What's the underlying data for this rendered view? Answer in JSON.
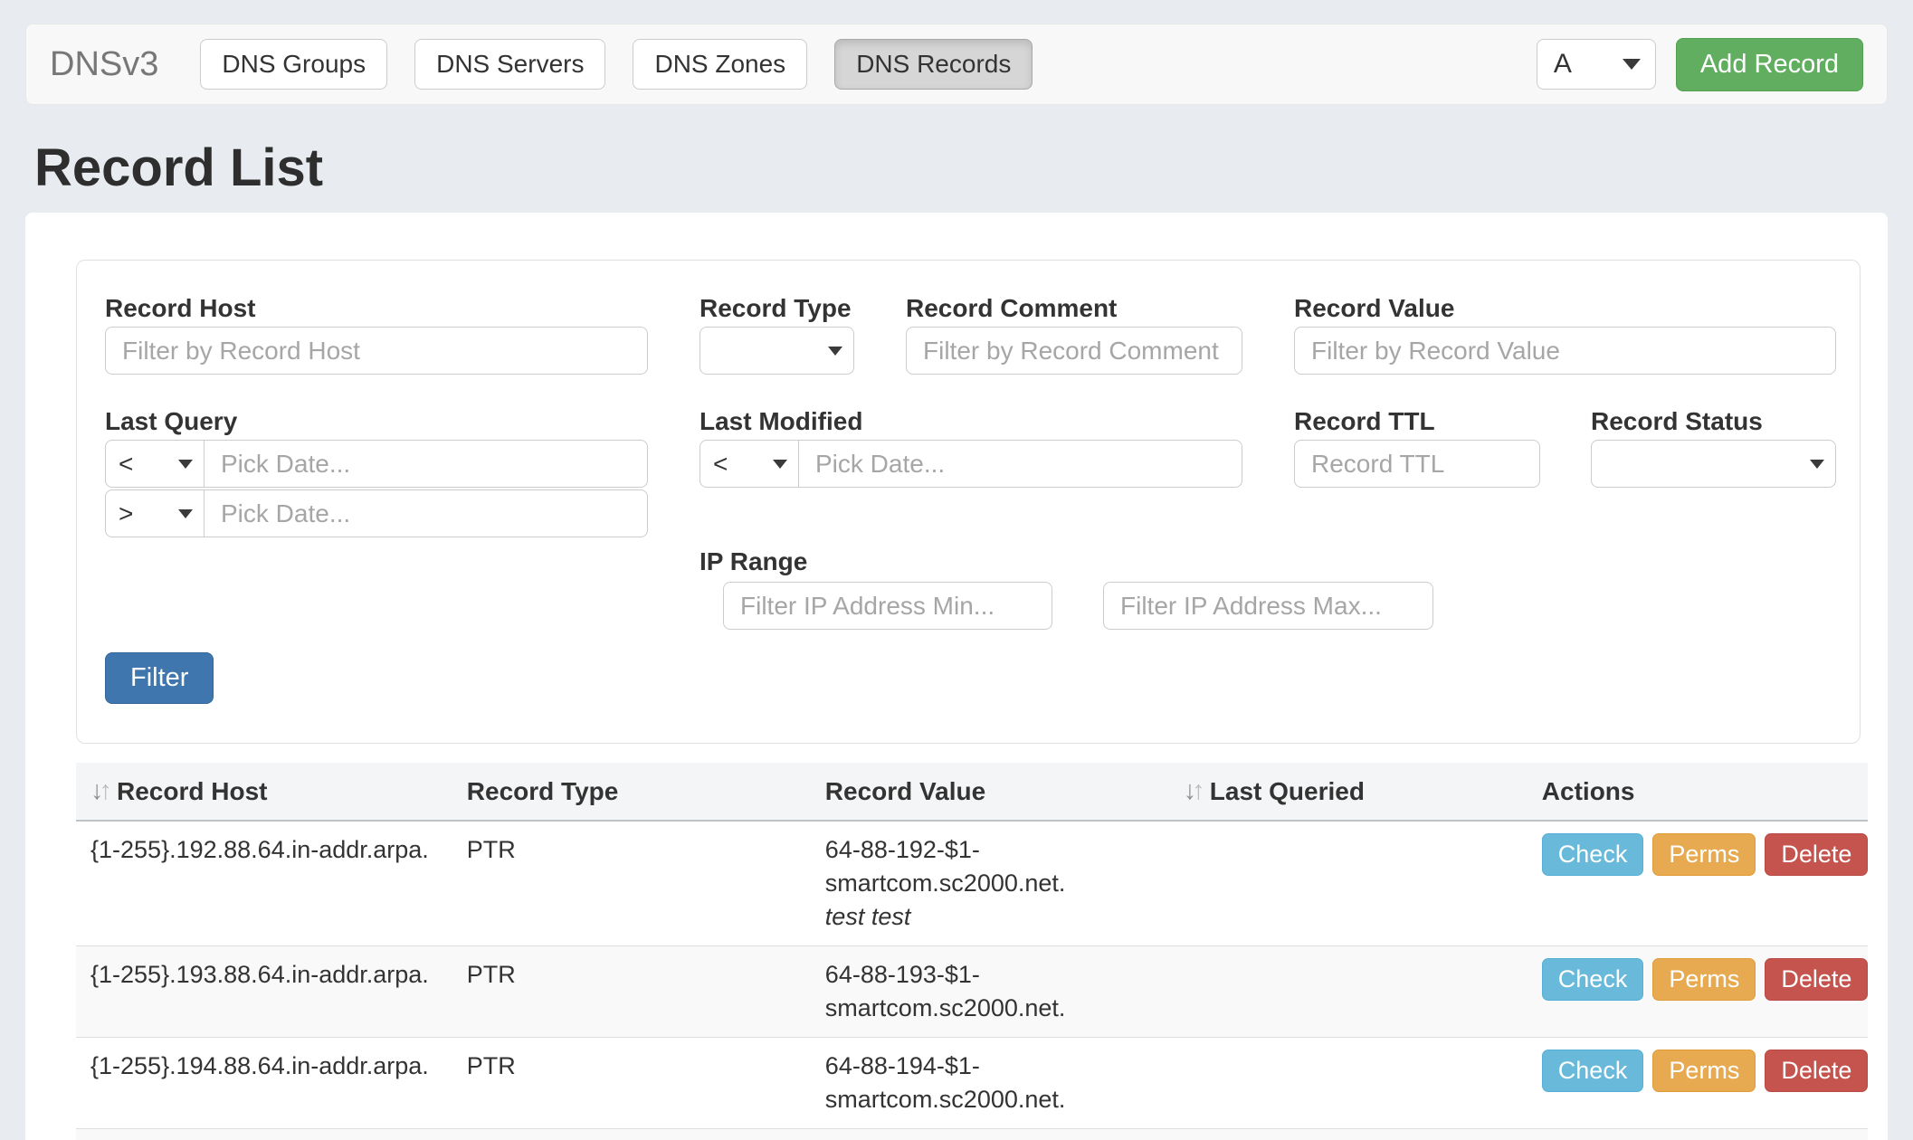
{
  "navbar": {
    "brand": "DNSv3",
    "items": [
      {
        "label": "DNS Groups",
        "active": false
      },
      {
        "label": "DNS Servers",
        "active": false
      },
      {
        "label": "DNS Zones",
        "active": false
      },
      {
        "label": "DNS Records",
        "active": true
      }
    ],
    "record_type_select_value": "A",
    "add_button_label": "Add Record"
  },
  "page": {
    "title": "Record List"
  },
  "filters": {
    "record_host": {
      "label": "Record Host",
      "placeholder": "Filter by Record Host",
      "value": ""
    },
    "record_type": {
      "label": "Record Type",
      "value": ""
    },
    "record_comment": {
      "label": "Record Comment",
      "placeholder": "Filter by Record Comment",
      "value": ""
    },
    "record_value": {
      "label": "Record Value",
      "placeholder": "Filter by Record Value",
      "value": ""
    },
    "last_query": {
      "label": "Last Query",
      "op_less": "<",
      "op_greater": ">",
      "date_placeholder": "Pick Date..."
    },
    "last_modified": {
      "label": "Last Modified",
      "op_less": "<",
      "date_placeholder": "Pick Date..."
    },
    "record_ttl": {
      "label": "Record TTL",
      "placeholder": "Record TTL",
      "value": ""
    },
    "record_status": {
      "label": "Record Status",
      "value": ""
    },
    "ip_range": {
      "label": "IP Range",
      "min_placeholder": "Filter IP Address Min...",
      "max_placeholder": "Filter IP Address Max..."
    },
    "submit_label": "Filter"
  },
  "table": {
    "headers": [
      {
        "label": "Record Host",
        "sortable": true
      },
      {
        "label": "Record Type",
        "sortable": false
      },
      {
        "label": "Record Value",
        "sortable": false
      },
      {
        "label": "Last Queried",
        "sortable": true
      },
      {
        "label": "Actions",
        "sortable": false
      }
    ],
    "action_labels": [
      "Check",
      "Perms",
      "Delete"
    ],
    "rows": [
      {
        "record_host": "{1-255}.192.88.64.in-addr.arpa.",
        "record_type": "PTR",
        "record_value": "64-88-192-$1-smartcom.sc2000.net.",
        "record_comment": "test test",
        "last_queried": ""
      },
      {
        "record_host": "{1-255}.193.88.64.in-addr.arpa.",
        "record_type": "PTR",
        "record_value": "64-88-193-$1-smartcom.sc2000.net.",
        "record_comment": "",
        "last_queried": ""
      },
      {
        "record_host": "{1-255}.194.88.64.in-addr.arpa.",
        "record_type": "PTR",
        "record_value": "64-88-194-$1-smartcom.sc2000.net.",
        "record_comment": "",
        "last_queried": ""
      }
    ]
  },
  "colors": {
    "page_bg": "#e8ecf0",
    "navbar_bg": "#f8f8f8",
    "nav_active_bg": "#d6d6d6",
    "add_button_green": "#61ae60",
    "filter_button_blue": "#3e76ad",
    "check_button_blue": "#69b9da",
    "perms_button_orange": "#e8aa50",
    "delete_button_red": "#c6544e",
    "table_stripe": "#f9f9f9",
    "table_header_bg": "#f4f5f6"
  }
}
